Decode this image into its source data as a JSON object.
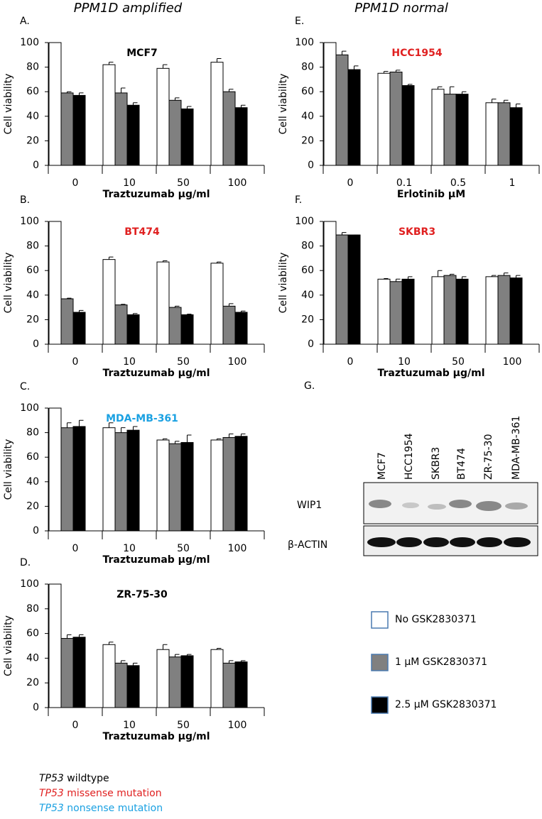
{
  "headings": [
    "PPM1D amplified",
    "PPM1D normal"
  ],
  "chart_data": [
    {
      "type": "bar",
      "panel": "A.",
      "title": "MCF7",
      "title_color": "#000000",
      "xlabel": "Traztuzumab μg/ml",
      "ylabel": "Cell viability",
      "categories": [
        "0",
        "10",
        "50",
        "100"
      ],
      "ylim": [
        0,
        100
      ],
      "yticks": [
        0,
        20,
        40,
        60,
        80,
        100
      ],
      "series": [
        {
          "color": "#ffffff",
          "values": [
            100,
            82,
            79,
            84
          ],
          "errors": [
            0,
            2,
            3,
            3
          ]
        },
        {
          "color": "#808080",
          "values": [
            59,
            59,
            53,
            60
          ],
          "errors": [
            1,
            4,
            2,
            2
          ]
        },
        {
          "color": "#000000",
          "values": [
            57,
            49,
            46,
            47
          ],
          "errors": [
            2,
            2,
            2,
            2
          ]
        }
      ]
    },
    {
      "type": "bar",
      "panel": "B.",
      "title": "BT474",
      "title_color": "#e02020",
      "xlabel": "Traztuzumab μg/ml",
      "ylabel": "Cell viability",
      "categories": [
        "0",
        "10",
        "50",
        "100"
      ],
      "ylim": [
        0,
        100
      ],
      "yticks": [
        0,
        20,
        40,
        60,
        80,
        100
      ],
      "series": [
        {
          "color": "#ffffff",
          "values": [
            100,
            69,
            67,
            66
          ],
          "errors": [
            0,
            2,
            1,
            1
          ]
        },
        {
          "color": "#808080",
          "values": [
            37,
            32,
            30,
            31
          ],
          "errors": [
            0.5,
            0.5,
            1,
            2
          ]
        },
        {
          "color": "#000000",
          "values": [
            26,
            24,
            24,
            26
          ],
          "errors": [
            1.5,
            1,
            0.5,
            1
          ]
        }
      ]
    },
    {
      "type": "bar",
      "panel": "C.",
      "title": "MDA-MB-361",
      "title_color": "#1ba1e2",
      "xlabel": "Traztuzumab μg/ml",
      "ylabel": "Cell viability",
      "categories": [
        "0",
        "10",
        "50",
        "100"
      ],
      "ylim": [
        0,
        100
      ],
      "yticks": [
        0,
        20,
        40,
        60,
        80,
        100
      ],
      "series": [
        {
          "color": "#ffffff",
          "values": [
            100,
            84,
            74,
            74
          ],
          "errors": [
            0,
            4,
            1,
            1
          ]
        },
        {
          "color": "#808080",
          "values": [
            84,
            80,
            71,
            76
          ],
          "errors": [
            4,
            4,
            2,
            3
          ]
        },
        {
          "color": "#000000",
          "values": [
            85,
            82,
            72,
            77
          ],
          "errors": [
            5,
            3,
            6,
            2
          ]
        }
      ]
    },
    {
      "type": "bar",
      "panel": "D.",
      "title": "ZR-75-30",
      "title_color": "#000000",
      "xlabel": "Traztuzumab μg/ml",
      "ylabel": "Cell viability",
      "categories": [
        "0",
        "10",
        "50",
        "100"
      ],
      "ylim": [
        0,
        100
      ],
      "yticks": [
        0,
        20,
        40,
        60,
        80,
        100
      ],
      "series": [
        {
          "color": "#ffffff",
          "values": [
            100,
            51,
            47,
            47
          ],
          "errors": [
            0,
            2,
            4,
            1
          ]
        },
        {
          "color": "#808080",
          "values": [
            56,
            36,
            41,
            36
          ],
          "errors": [
            3,
            2,
            2,
            2
          ]
        },
        {
          "color": "#000000",
          "values": [
            57,
            34,
            42,
            37
          ],
          "errors": [
            2,
            2,
            1,
            1
          ]
        }
      ]
    },
    {
      "type": "bar",
      "panel": "E.",
      "title": "HCC1954",
      "title_color": "#e02020",
      "xlabel": "Erlotinib μM",
      "ylabel": "Cell viability",
      "categories": [
        "0",
        "0.1",
        "0.5",
        "1"
      ],
      "ylim": [
        0,
        100
      ],
      "yticks": [
        0,
        20,
        40,
        60,
        80,
        100
      ],
      "series": [
        {
          "color": "#ffffff",
          "values": [
            100,
            75,
            62,
            51
          ],
          "errors": [
            0,
            1.5,
            2,
            3
          ]
        },
        {
          "color": "#808080",
          "values": [
            90,
            76,
            58,
            51
          ],
          "errors": [
            3,
            1.5,
            6,
            2
          ]
        },
        {
          "color": "#000000",
          "values": [
            78,
            65,
            58,
            47
          ],
          "errors": [
            3,
            1,
            2,
            3
          ]
        }
      ]
    },
    {
      "type": "bar",
      "panel": "F.",
      "title": "SKBR3",
      "title_color": "#e02020",
      "xlabel": "Traztuzumab μg/ml",
      "ylabel": "Cell viability",
      "categories": [
        "0",
        "10",
        "50",
        "100"
      ],
      "ylim": [
        0,
        100
      ],
      "yticks": [
        0,
        20,
        40,
        60,
        80,
        100
      ],
      "series": [
        {
          "color": "#ffffff",
          "values": [
            100,
            53,
            55,
            55
          ],
          "errors": [
            0,
            0.5,
            5,
            1
          ]
        },
        {
          "color": "#808080",
          "values": [
            89,
            51,
            56,
            56
          ],
          "errors": [
            2,
            2,
            1,
            2
          ]
        },
        {
          "color": "#000000",
          "values": [
            89,
            53,
            53,
            54
          ],
          "errors": [
            0,
            2,
            2,
            2
          ]
        }
      ]
    }
  ],
  "blot": {
    "panel": "G.",
    "lanes": [
      "MCF7",
      "HCC1954",
      "SKBR3",
      "BT474",
      "ZR-75-30",
      "MDA-MB-361"
    ],
    "rows": [
      "WIP1",
      "β-ACTIN"
    ]
  },
  "legend": [
    {
      "name": "No GSK2830371",
      "color": "#ffffff"
    },
    {
      "name": "1 μM GSK2830371",
      "color": "#808080"
    },
    {
      "name": "2.5 μM GSK2830371",
      "color": "#000000"
    }
  ],
  "footnote": [
    {
      "gene": "TP53",
      "text": "wildtype",
      "color": "#000000"
    },
    {
      "gene": "TP53",
      "text": "missense mutation",
      "color": "#e02020"
    },
    {
      "gene": "TP53",
      "text": "nonsense mutation",
      "color": "#1ba1e2"
    }
  ]
}
